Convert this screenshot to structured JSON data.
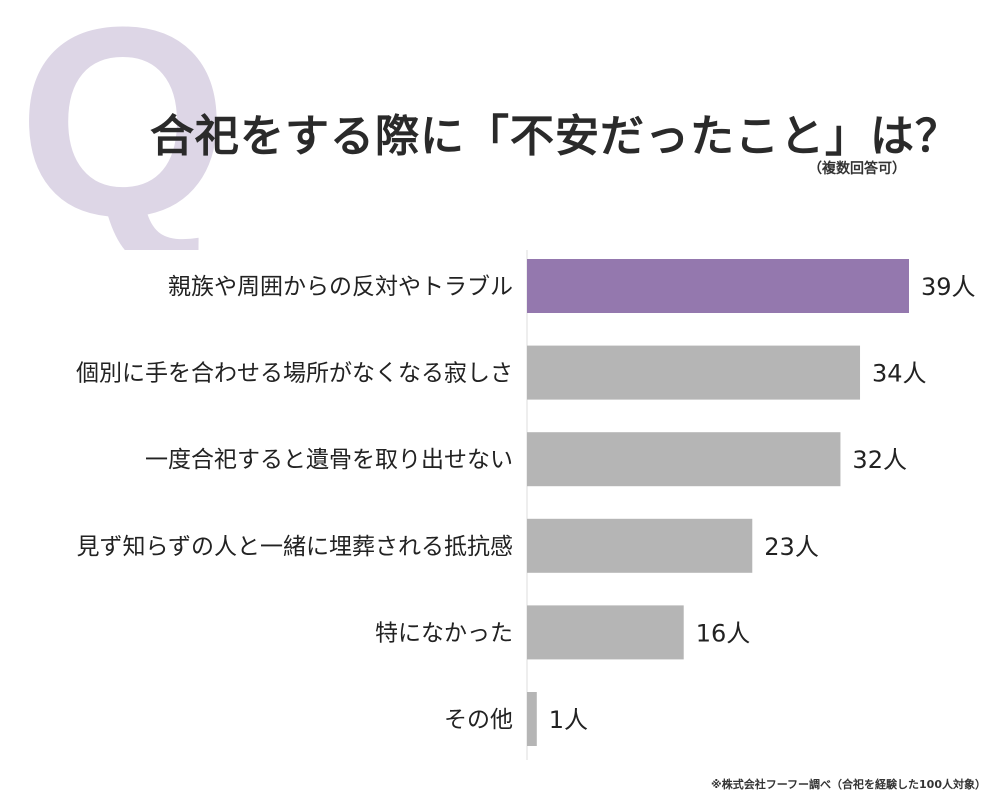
{
  "title": "合祀をする際に「不安だったこと」は？",
  "subtitle": "（複数回答可）",
  "q_letter": "Q",
  "source": "※株式会社フーフー調べ（合祀を経験した100人対象）",
  "colors": {
    "highlight": "#9478ae",
    "bar": "#b5b5b5",
    "q_letter": "#ddd6e6"
  },
  "chart_data": {
    "type": "bar",
    "orientation": "horizontal",
    "title": "合祀をする際に「不安だったこと」は？",
    "unit": "人",
    "categories": [
      "親族や周囲からの反対やトラブル",
      "個別に手を合わせる場所がなくなる寂しさ",
      "一度合祀すると遺骨を取り出せない",
      "見ず知らずの人と一緒に埋葬される抵抗感",
      "特になかった",
      "その他"
    ],
    "values": [
      39,
      34,
      32,
      23,
      16,
      1
    ],
    "value_labels": [
      "39人",
      "34人",
      "32人",
      "23人",
      "16人",
      "1人"
    ],
    "highlight_index": 0,
    "xlim": [
      0,
      39
    ]
  }
}
